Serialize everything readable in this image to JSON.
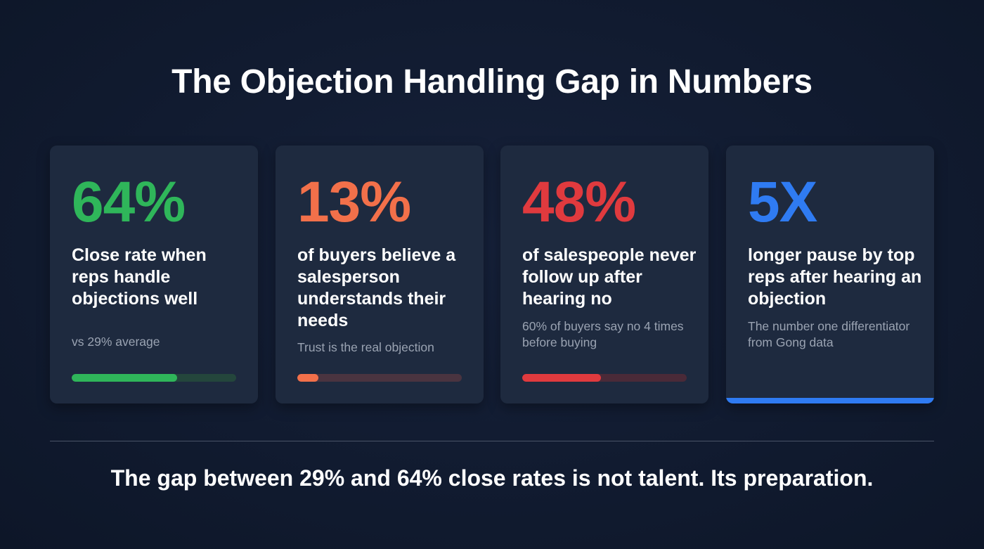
{
  "title": "The Objection Handling Gap in Numbers",
  "cards": [
    {
      "stat": "64%",
      "heading": "Close rate when reps handle objections well",
      "sub": "vs 29% average",
      "color": "#2fb65a",
      "track_color": "#24463c",
      "bar_fraction": 0.64
    },
    {
      "stat": "13%",
      "heading": "of buyers believe a salesperson understands their needs",
      "sub": "Trust is the real objection",
      "color": "#f2704a",
      "track_color": "#4a3440",
      "bar_fraction": 0.13
    },
    {
      "stat": "48%",
      "heading": "of salespeople never follow up after hearing no",
      "sub": "60% of buyers say no 4 times before buying",
      "color": "#e03a3e",
      "track_color": "#4a2a38",
      "bar_fraction": 0.48
    },
    {
      "stat": "5X",
      "heading": "longer pause by top reps after hearing an objection",
      "sub": "The number one differentiator from Gong data",
      "color": "#2f7bf2"
    }
  ],
  "footer": "The gap between 29% and 64% close rates is not talent. Its preparation."
}
